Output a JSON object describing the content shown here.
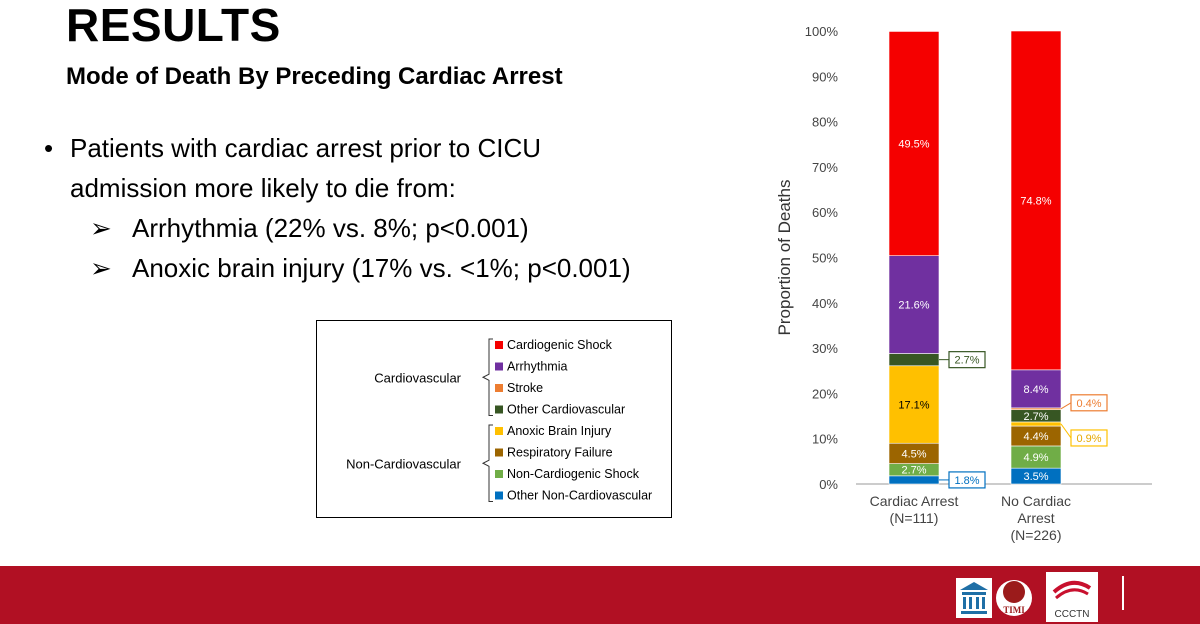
{
  "slide": {
    "title": "RESULTS",
    "subtitle": "Mode of Death By Preceding Cardiac Arrest",
    "bullet_main_line1": "Patients with cardiac arrest prior to CICU",
    "bullet_main_line2": "admission more likely to die from:",
    "sub_bullets": [
      "Arrhythmia (22% vs. 8%; p<0.001)",
      "Anoxic brain injury (17% vs. <1%; p<0.001)"
    ]
  },
  "legend": {
    "groups": [
      {
        "name": "Cardiovascular",
        "items": [
          "Cardiogenic Shock",
          "Arrhythmia",
          "Stroke",
          "Other Cardiovascular"
        ]
      },
      {
        "name": "Non-Cardiovascular",
        "items": [
          "Anoxic Brain Injury",
          "Respiratory Failure",
          "Non-Cardiogenic Shock",
          "Other Non-Cardiovascular"
        ]
      }
    ]
  },
  "colors": {
    "Cardiogenic Shock": "#f50000",
    "Arrhythmia": "#7030a0",
    "Stroke": "#ed7d31",
    "Other Cardiovascular": "#375623",
    "Anoxic Brain Injury": "#ffc000",
    "Respiratory Failure": "#9c6500",
    "Non-Cardiogenic Shock": "#70ad47",
    "Other Non-Cardiovascular": "#0070c0",
    "footer": "#b11023"
  },
  "chart_data": {
    "type": "bar",
    "stacked": true,
    "ylabel": "Proportion of Deaths",
    "ylim": [
      0,
      100
    ],
    "y_ticks": [
      "0%",
      "10%",
      "20%",
      "30%",
      "40%",
      "50%",
      "60%",
      "70%",
      "80%",
      "90%",
      "100%"
    ],
    "categories": [
      {
        "line1": "Cardiac Arrest",
        "line2": "(N=111)",
        "line3": ""
      },
      {
        "line1": "No Cardiac",
        "line2": "Arrest",
        "line3": "(N=226)"
      }
    ],
    "series": [
      {
        "name": "Other Non-Cardiovascular",
        "values": [
          1.8,
          3.5
        ],
        "labels": [
          "1.8%",
          "3.5%"
        ]
      },
      {
        "name": "Non-Cardiogenic Shock",
        "values": [
          2.7,
          4.9
        ],
        "labels": [
          "2.7%",
          "4.9%"
        ]
      },
      {
        "name": "Respiratory Failure",
        "values": [
          4.5,
          4.4
        ],
        "labels": [
          "4.5%",
          "4.4%"
        ]
      },
      {
        "name": "Anoxic Brain Injury",
        "values": [
          17.1,
          0.9
        ],
        "labels": [
          "17.1%",
          "0.9%"
        ]
      },
      {
        "name": "Other Cardiovascular",
        "values": [
          2.7,
          2.7
        ],
        "labels": [
          "2.7%",
          "2.7%"
        ]
      },
      {
        "name": "Stroke",
        "values": [
          0.0,
          0.4
        ],
        "labels": [
          "",
          "0.4%"
        ]
      },
      {
        "name": "Arrhythmia",
        "values": [
          21.6,
          8.4
        ],
        "labels": [
          "21.6%",
          "8.4%"
        ]
      },
      {
        "name": "Cardiogenic Shock",
        "values": [
          49.5,
          74.8
        ],
        "labels": [
          "49.5%",
          "74.8%"
        ]
      }
    ]
  },
  "footer": {
    "logo_timi": "TIMI",
    "logo_ccctn": "CCCTN"
  }
}
